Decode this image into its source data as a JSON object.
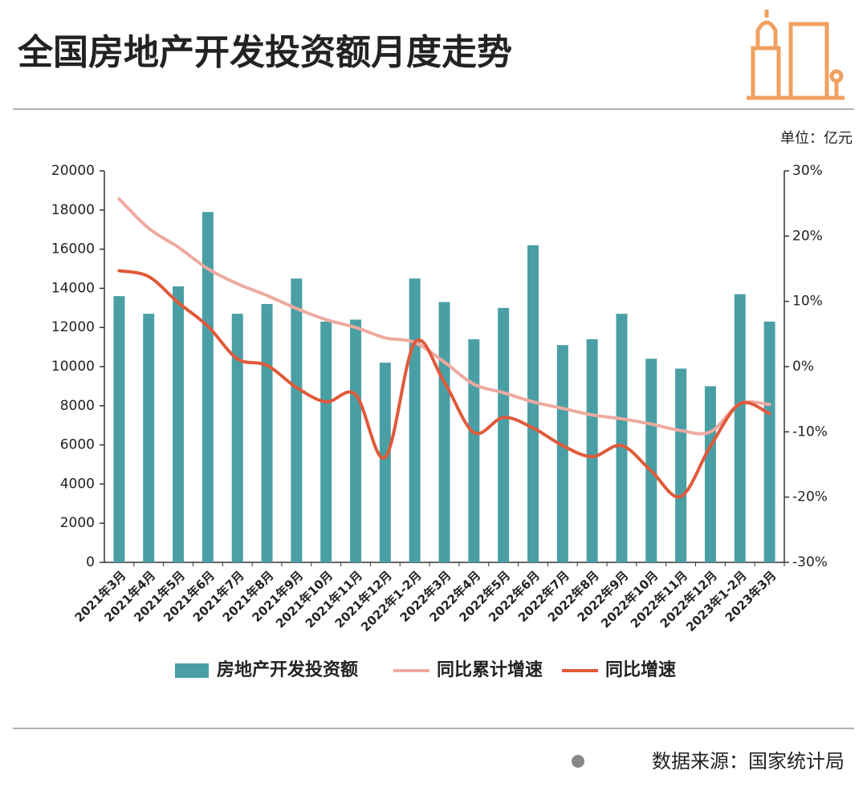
{
  "chart_data": {
    "type": "bar",
    "title": "全国房地产开发投资额月度走势",
    "unit_label": "单位：亿元",
    "source": "数据来源：国家统计局",
    "categories": [
      "2021年3月",
      "2021年4月",
      "2021年5月",
      "2021年6月",
      "2021年7月",
      "2021年8月",
      "2021年9月",
      "2021年10月",
      "2021年11月",
      "2021年12月",
      "2022年1-2月",
      "2022年3月",
      "2022年4月",
      "2022年5月",
      "2022年6月",
      "2022年7月",
      "2022年8月",
      "2022年9月",
      "2022年10月",
      "2022年11月",
      "2022年12月",
      "2023年1-2月",
      "2023年3月"
    ],
    "series": [
      {
        "name": "房地产开发投资额",
        "type": "bar",
        "color": "#4a9fa5",
        "values": [
          13600,
          12700,
          14100,
          17900,
          12700,
          13200,
          14500,
          12300,
          12400,
          10200,
          14500,
          13300,
          11400,
          13000,
          16200,
          11100,
          11400,
          12700,
          10400,
          9900,
          9000,
          13700,
          12300
        ]
      },
      {
        "name": "同比累计增速",
        "type": "line",
        "axis": "y2",
        "color": "#eeaaa0",
        "values": [
          25.7,
          21.2,
          18.3,
          15.0,
          12.7,
          10.9,
          8.9,
          7.2,
          6.0,
          4.4,
          3.7,
          0.7,
          -2.7,
          -4.0,
          -5.4,
          -6.4,
          -7.4,
          -8.0,
          -8.8,
          -9.8,
          -10.0,
          -5.7,
          -5.8
        ]
      },
      {
        "name": "同比增速",
        "type": "line",
        "axis": "y2",
        "color": "#e05a3a",
        "values": [
          14.7,
          13.8,
          9.8,
          6.2,
          1.2,
          0.2,
          -3.2,
          -5.4,
          -4.3,
          -13.9,
          3.7,
          -2.4,
          -10.1,
          -7.8,
          -9.4,
          -12.1,
          -13.8,
          -12.1,
          -16.0,
          -19.9,
          -12.2,
          -5.7,
          -7.2
        ]
      }
    ],
    "ylim": [
      0,
      20000
    ],
    "yticks": [
      0,
      2000,
      4000,
      6000,
      8000,
      10000,
      12000,
      14000,
      16000,
      18000,
      20000
    ],
    "y2lim": [
      -30,
      30
    ],
    "y2ticks": [
      {
        "value": -30,
        "label": "-30%"
      },
      {
        "value": -20,
        "label": "-20%"
      },
      {
        "value": -10,
        "label": "-10%"
      },
      {
        "value": 0,
        "label": "0%"
      },
      {
        "value": 10,
        "label": "10%"
      },
      {
        "value": 20,
        "label": "20%"
      },
      {
        "value": 30,
        "label": "30%"
      }
    ]
  }
}
